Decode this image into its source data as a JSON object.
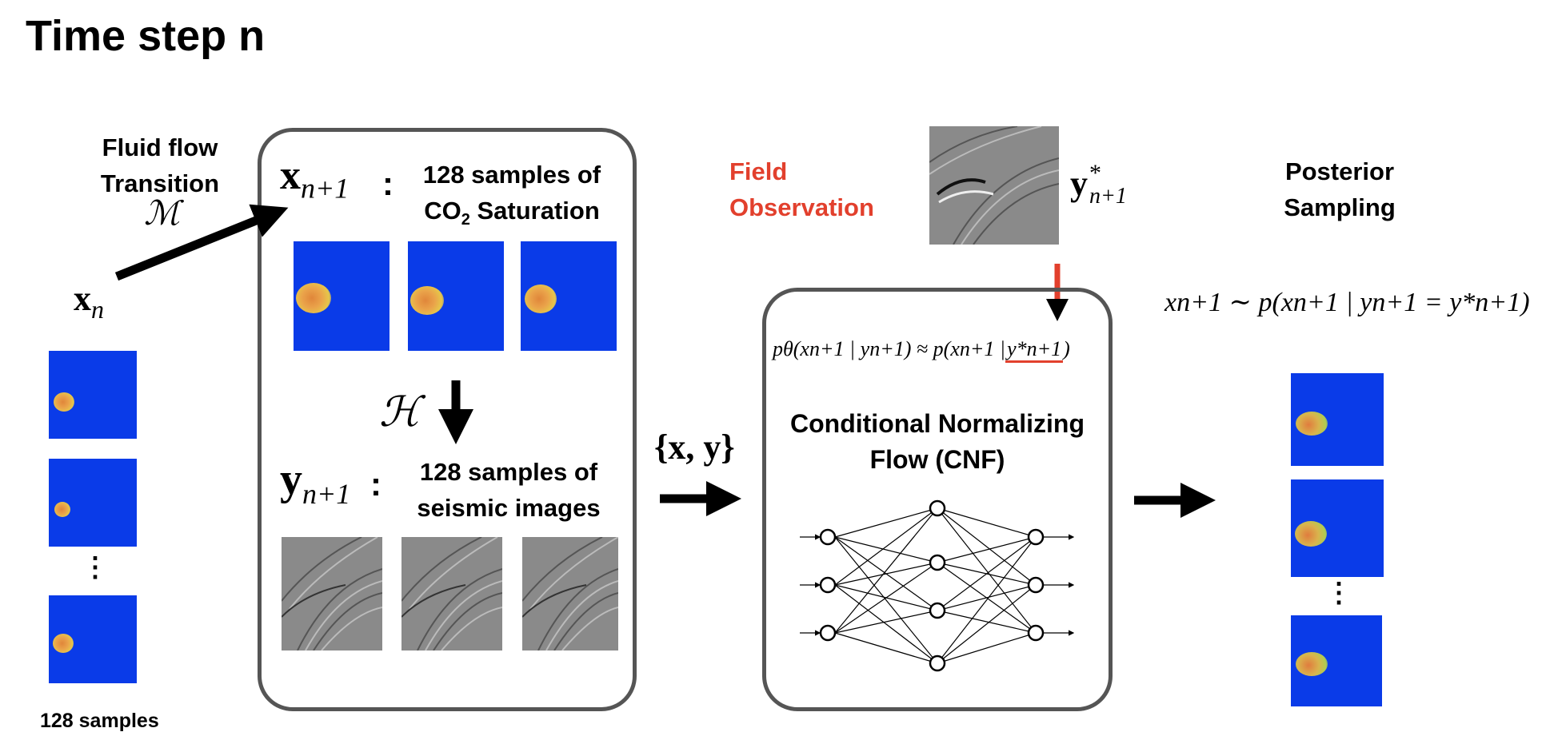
{
  "title": "Time step n",
  "left": {
    "transition_line1": "Fluid flow",
    "transition_line2": "Transition",
    "operator_M": "ℳ",
    "x_n_main": "x",
    "x_n_sub": "n",
    "samples_label": "128 samples",
    "dots": "⋮"
  },
  "forward_box": {
    "x_label_main": "x",
    "x_label_sub": "n+1",
    "colon": ":",
    "x_desc_line1": "128 samples of",
    "x_desc_line2_pre": "CO",
    "x_desc_line2_sub": "2",
    "x_desc_line2_post": " Saturation",
    "operator_H": "ℋ",
    "y_label_main": "y",
    "y_label_sub": "n+1",
    "y_desc_line1": "128 samples of",
    "y_desc_line2": "seismic images"
  },
  "pair_label": "{x, y}",
  "field": {
    "label_line1": "Field",
    "label_line2": "Observation",
    "ystar_main": "y",
    "ystar_sup": "*",
    "ystar_sub": "n+1",
    "accent_color": "#e2402d"
  },
  "cnf_box": {
    "equation_left": "pθ(xn+1 | yn+1) ≈ p(xn+1 |",
    "equation_highlight": "y*n+1",
    "equation_right": ")",
    "title_line1": "Conditional Normalizing",
    "title_line2": "Flow (CNF)"
  },
  "posterior": {
    "label_line1": "Posterior",
    "label_line2": "Sampling",
    "equation": "xn+1 ∼ p(xn+1 | yn+1 = y*n+1)",
    "dots": "⋮"
  },
  "colors": {
    "saturation_bg": "#0a3be8",
    "box_border": "#555555"
  }
}
